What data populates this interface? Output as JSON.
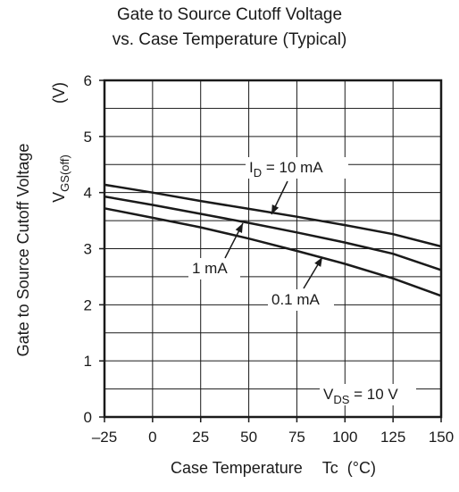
{
  "chart_data": {
    "type": "line",
    "title_line1": "Gate to Source Cutoff Voltage",
    "title_line2": "vs. Case Temperature (Typical)",
    "xlabel": "Case Temperature",
    "xlabel_symbol": "Tc",
    "xlabel_unit": "(°C)",
    "ylabel": "Gate to Source Cutoff Voltage",
    "ylabel_symbol_main": "V",
    "ylabel_symbol_sub": "GS(off)",
    "ylabel_unit": "(V)",
    "xlim": [
      -25,
      150
    ],
    "ylim": [
      0,
      6
    ],
    "x_ticks": [
      -25,
      0,
      25,
      50,
      75,
      100,
      125,
      150
    ],
    "x_tick_labels": [
      "–25",
      "0",
      "25",
      "50",
      "75",
      "100",
      "125",
      "150"
    ],
    "y_ticks": [
      0,
      1,
      2,
      3,
      4,
      5,
      6
    ],
    "y_tick_labels": [
      "0",
      "1",
      "2",
      "3",
      "4",
      "5",
      "6"
    ],
    "grid": true,
    "series": [
      {
        "name": "ID = 10 mA",
        "label_main": "I",
        "label_sub": "D",
        "label_rest": " = 10 mA",
        "x": [
          -25,
          0,
          25,
          50,
          75,
          100,
          125,
          150
        ],
        "y": [
          4.14,
          4.0,
          3.85,
          3.71,
          3.57,
          3.42,
          3.26,
          3.04
        ]
      },
      {
        "name": "1 mA",
        "label_main": "1 mA",
        "x": [
          -25,
          0,
          25,
          50,
          75,
          100,
          125,
          150
        ],
        "y": [
          3.93,
          3.78,
          3.62,
          3.46,
          3.29,
          3.11,
          2.91,
          2.62
        ]
      },
      {
        "name": "0.1 mA",
        "label_main": "0.1 mA",
        "x": [
          -25,
          0,
          25,
          50,
          75,
          100,
          125,
          150
        ],
        "y": [
          3.72,
          3.55,
          3.38,
          3.18,
          2.96,
          2.73,
          2.47,
          2.16
        ]
      }
    ],
    "condition": {
      "main": "V",
      "sub": "DS",
      "rest": " = 10 V"
    }
  }
}
